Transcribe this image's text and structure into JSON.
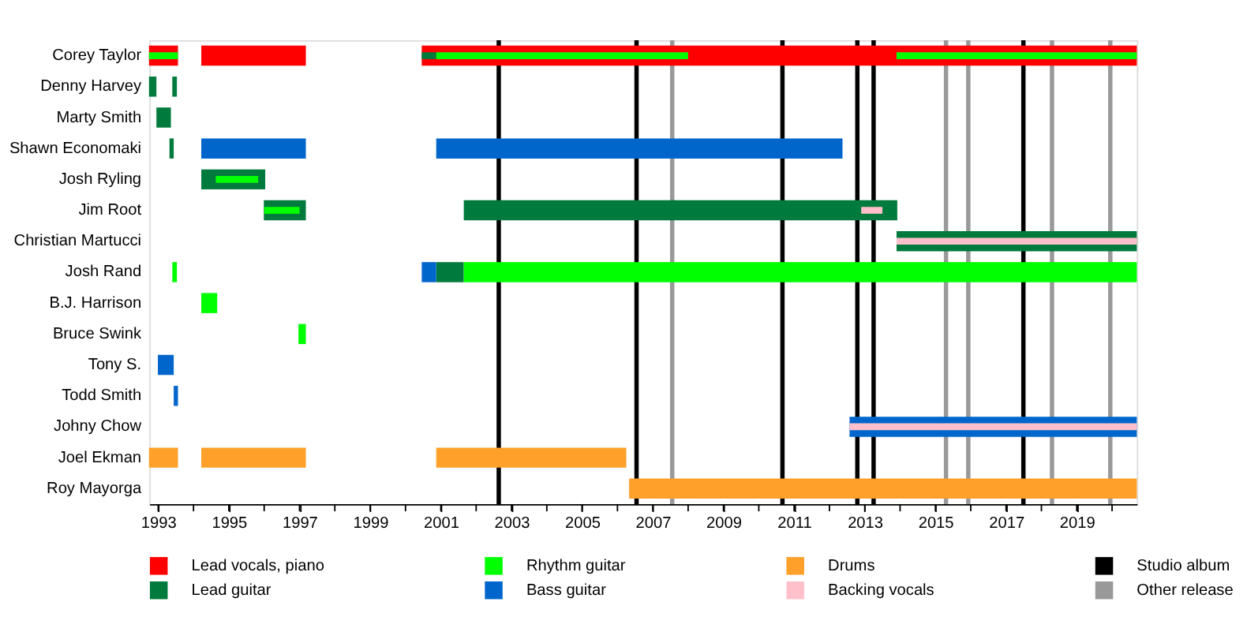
{
  "chart_data": {
    "type": "bar",
    "orientation": "horizontal",
    "categories": [
      "Corey Taylor",
      "Denny Harvey",
      "Marty Smith",
      "Shawn Economaki",
      "Josh Ryling",
      "Jim Root",
      "Christian Martucci",
      "Josh Rand",
      "B.J. Harrison",
      "Bruce Swink",
      "Tony S.",
      "Todd Smith",
      "Johny Chow",
      "Joel Ekman",
      "Roy Mayorga"
    ],
    "series": [
      {
        "name": "Lead vocals, piano",
        "color": "#ff0000",
        "base": [
          1992.74,
          null,
          null,
          null,
          null,
          null,
          null,
          null,
          null,
          null,
          null,
          null,
          null,
          null,
          null
        ],
        "values": [
          0.82,
          null,
          null,
          null,
          null,
          null,
          null,
          null,
          null,
          null,
          null,
          null,
          null,
          null,
          null
        ]
      },
      {
        "color": "#ff0000",
        "base": [
          1994.22,
          null,
          null,
          null,
          null,
          null,
          null,
          null,
          null,
          null,
          null,
          null,
          null,
          null,
          null
        ],
        "values": [
          2.96,
          null,
          null,
          null,
          null,
          null,
          null,
          null,
          null,
          null,
          null,
          null,
          null,
          null,
          null
        ]
      },
      {
        "color": "#ff0000",
        "base": [
          2000.46,
          null,
          null,
          null,
          null,
          null,
          null,
          null,
          null,
          null,
          null,
          null,
          null,
          null,
          null
        ],
        "values": [
          20.24,
          null,
          null,
          null,
          null,
          null,
          null,
          null,
          null,
          null,
          null,
          null,
          null,
          null,
          null
        ]
      },
      {
        "name": "Lead guitar",
        "color": "#007a3d",
        "base": [
          2000.46,
          1992.74,
          1992.95,
          1993.32,
          1994.22,
          1995.99,
          2013.9,
          2000.87,
          null,
          null,
          null,
          null,
          null,
          null,
          null
        ],
        "values": [
          0.41,
          0.21,
          0.41,
          0.12,
          1.81,
          1.19,
          6.8,
          0.78,
          null,
          null,
          null,
          null,
          null,
          null,
          null
        ]
      },
      {
        "color": "#007a3d",
        "base": [
          null,
          1993.4,
          null,
          null,
          null,
          2001.65,
          null,
          null,
          null,
          null,
          null,
          null,
          null,
          null,
          null
        ],
        "values": [
          null,
          0.13,
          null,
          null,
          null,
          12.27,
          null,
          null,
          null,
          null,
          null,
          null,
          null,
          null,
          null
        ]
      },
      {
        "name": "Rhythm guitar",
        "color": "#00ff00",
        "base": [
          null,
          null,
          null,
          null,
          null,
          null,
          null,
          1993.4,
          1994.22,
          1996.97,
          null,
          null,
          null,
          null,
          null
        ],
        "values": [
          null,
          null,
          null,
          null,
          null,
          null,
          null,
          0.13,
          0.45,
          0.21,
          null,
          null,
          null,
          null,
          null
        ]
      },
      {
        "color": "#00ff00",
        "base": [
          null,
          null,
          null,
          null,
          null,
          null,
          null,
          2001.65,
          null,
          null,
          null,
          null,
          null,
          null,
          null
        ],
        "values": [
          null,
          null,
          null,
          null,
          null,
          null,
          null,
          19.05,
          null,
          null,
          null,
          null,
          null,
          null,
          null
        ]
      },
      {
        "name": "Bass guitar",
        "color": "#0066cc",
        "base": [
          null,
          null,
          null,
          1994.22,
          null,
          null,
          null,
          2000.46,
          null,
          null,
          1992.99,
          1993.44,
          2012.57,
          null,
          null
        ],
        "values": [
          null,
          null,
          null,
          2.96,
          null,
          null,
          null,
          0.41,
          null,
          null,
          0.45,
          0.12,
          8.13,
          null,
          null
        ]
      },
      {
        "color": "#0066cc",
        "base": [
          null,
          null,
          null,
          2000.87,
          null,
          null,
          null,
          null,
          null,
          null,
          null,
          null,
          null,
          null,
          null
        ],
        "values": [
          null,
          null,
          null,
          11.5,
          null,
          null,
          null,
          null,
          null,
          null,
          null,
          null,
          null,
          null,
          null
        ]
      },
      {
        "name": "Drums",
        "color": "#ffa02a",
        "base": [
          null,
          null,
          null,
          null,
          null,
          null,
          null,
          null,
          null,
          null,
          null,
          null,
          null,
          1992.74,
          2006.33
        ],
        "values": [
          null,
          null,
          null,
          null,
          null,
          null,
          null,
          null,
          null,
          null,
          null,
          null,
          null,
          0.82,
          14.37
        ]
      },
      {
        "color": "#ffa02a",
        "base": [
          null,
          null,
          null,
          null,
          null,
          null,
          null,
          null,
          null,
          null,
          null,
          null,
          null,
          1994.22,
          null
        ],
        "values": [
          null,
          null,
          null,
          null,
          null,
          null,
          null,
          null,
          null,
          null,
          null,
          null,
          null,
          2.96,
          null
        ]
      },
      {
        "color": "#ffa02a",
        "base": [
          null,
          null,
          null,
          null,
          null,
          null,
          null,
          null,
          null,
          null,
          null,
          null,
          null,
          2000.87,
          null
        ],
        "values": [
          null,
          null,
          null,
          null,
          null,
          null,
          null,
          null,
          null,
          null,
          null,
          null,
          null,
          5.38,
          null
        ]
      },
      {
        "color": "#00ff00",
        "base": [
          1992.74,
          null,
          null,
          null,
          1994.63,
          1996.0,
          null,
          null,
          null,
          null,
          null,
          null,
          null,
          null,
          null
        ],
        "values": [
          0.82,
          null,
          null,
          null,
          1.2,
          1.0,
          null,
          null,
          null,
          null,
          null,
          null,
          null,
          null,
          null
        ]
      },
      {
        "color": "#00ff00",
        "base": [
          2000.87,
          null,
          null,
          null,
          null,
          null,
          null,
          null,
          null,
          null,
          null,
          null,
          null,
          null,
          null
        ],
        "values": [
          7.13,
          null,
          null,
          null,
          null,
          null,
          null,
          null,
          null,
          null,
          null,
          null,
          null,
          null,
          null
        ]
      },
      {
        "color": "#00ff00",
        "base": [
          2013.9,
          null,
          null,
          null,
          null,
          null,
          null,
          null,
          null,
          null,
          null,
          null,
          null,
          null,
          null
        ],
        "values": [
          6.8,
          null,
          null,
          null,
          null,
          null,
          null,
          null,
          null,
          null,
          null,
          null,
          null,
          null,
          null
        ]
      },
      {
        "name": "Backing vocals",
        "color": "#ffc0cb",
        "base": [
          null,
          null,
          null,
          null,
          null,
          2012.9,
          2013.9,
          null,
          null,
          null,
          null,
          null,
          2012.57,
          null,
          null
        ],
        "values": [
          null,
          null,
          null,
          null,
          null,
          0.6,
          6.8,
          null,
          null,
          null,
          null,
          null,
          8.13,
          null,
          null
        ]
      }
    ],
    "ref_lines": [
      {
        "axis": "x",
        "value": 2002.64,
        "label": "Studio album",
        "color": "#000000"
      },
      {
        "axis": "x",
        "value": 2006.54,
        "color": "#000000"
      },
      {
        "axis": "x",
        "value": 2010.67,
        "color": "#000000"
      },
      {
        "axis": "x",
        "value": 2012.79,
        "color": "#000000"
      },
      {
        "axis": "x",
        "value": 2013.25,
        "color": "#000000"
      },
      {
        "axis": "x",
        "value": 2017.49,
        "color": "#000000"
      },
      {
        "axis": "x",
        "value": 2007.55,
        "label": "Other release",
        "color": "#999999"
      },
      {
        "axis": "x",
        "value": 2015.3,
        "color": "#999999"
      },
      {
        "axis": "x",
        "value": 2015.93,
        "color": "#999999"
      },
      {
        "axis": "x",
        "value": 2018.3,
        "color": "#999999"
      },
      {
        "axis": "x",
        "value": 2019.95,
        "color": "#999999"
      }
    ],
    "xlim": [
      1992.75,
      2020.7
    ],
    "xticks": [
      1993,
      {
        "value": 1994,
        "label": null
      },
      1995,
      {
        "value": 1996,
        "label": null
      },
      1997,
      {
        "value": 1998,
        "label": null
      },
      1999,
      {
        "value": 2000,
        "label": null
      },
      2001,
      {
        "value": 2002,
        "label": null
      },
      2003,
      {
        "value": 2004,
        "label": null
      },
      2005,
      {
        "value": 2006,
        "label": null
      },
      2007,
      {
        "value": 2008,
        "label": null
      },
      2009,
      {
        "value": 2010,
        "label": null
      },
      2011,
      {
        "value": 2012,
        "label": null
      },
      2013,
      {
        "value": 2014,
        "label": null
      },
      2015,
      {
        "value": 2016,
        "label": null
      },
      2017,
      {
        "value": 2018,
        "label": null
      },
      2019,
      {
        "value": 2020,
        "label": null
      }
    ],
    "grid": false,
    "legend": "bottom"
  }
}
